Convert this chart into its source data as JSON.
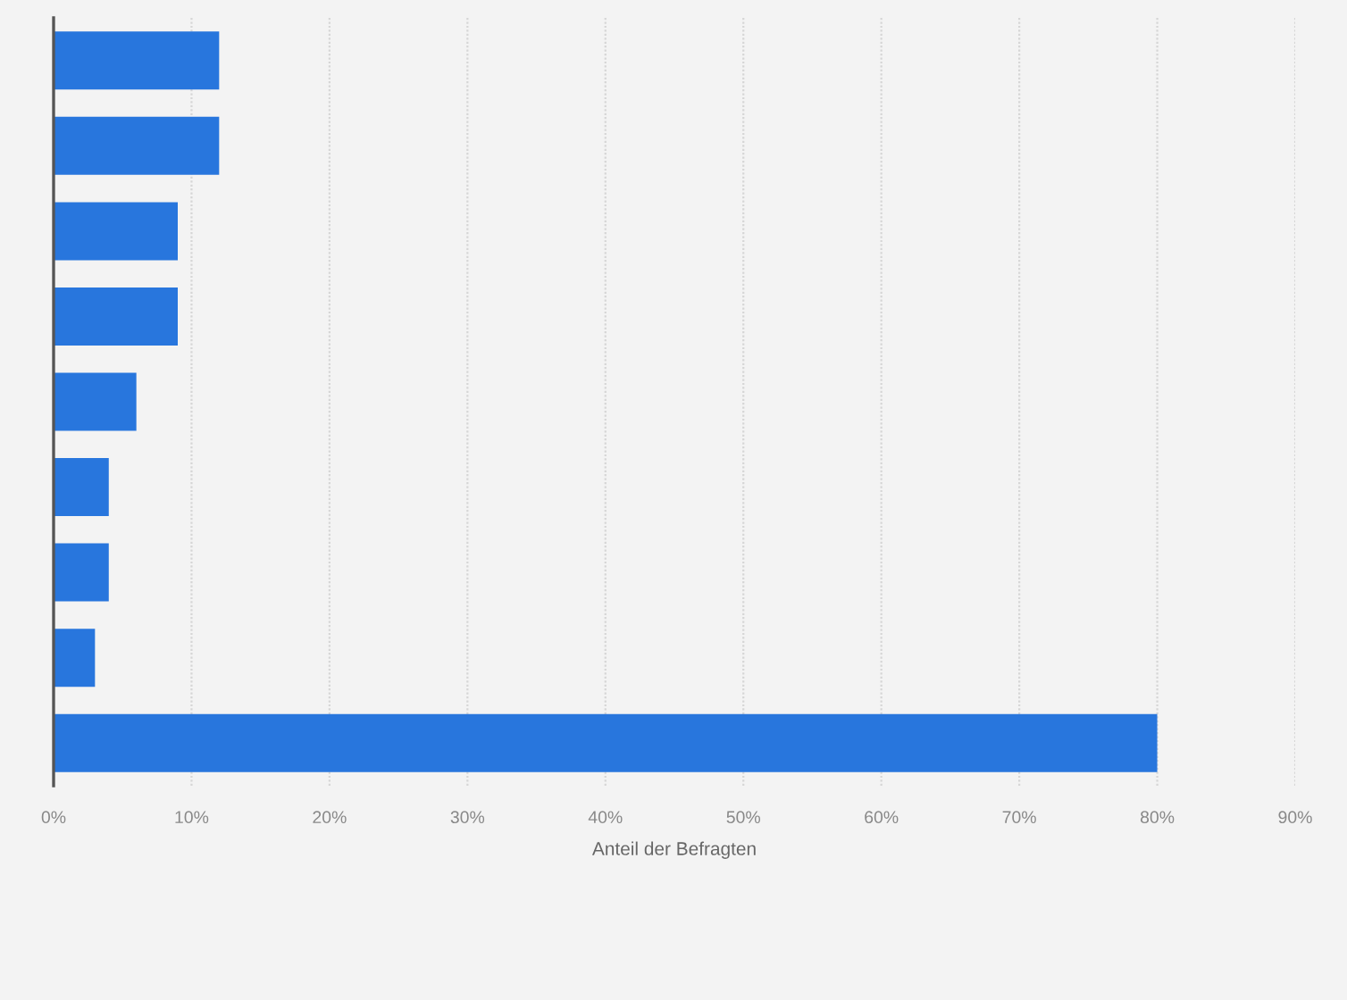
{
  "chart_data": {
    "type": "bar",
    "orientation": "horizontal",
    "xlabel": "Anteil der Befragten",
    "categories": [
      null,
      null,
      null,
      null,
      null,
      null,
      null,
      null,
      null
    ],
    "values": [
      12,
      12,
      9,
      9,
      6,
      4,
      4,
      3,
      80
    ],
    "color": "#2876dd",
    "xlim": [
      0,
      90
    ],
    "xticks": [
      {
        "value": 0,
        "label": "0%"
      },
      {
        "value": 10,
        "label": "10%"
      },
      {
        "value": 20,
        "label": "20%"
      },
      {
        "value": 30,
        "label": "30%"
      },
      {
        "value": 40,
        "label": "40%"
      },
      {
        "value": 50,
        "label": "50%"
      },
      {
        "value": 60,
        "label": "60%"
      },
      {
        "value": 70,
        "label": "70%"
      },
      {
        "value": 80,
        "label": "80%"
      },
      {
        "value": 90,
        "label": "90%"
      }
    ],
    "grid": "x"
  }
}
